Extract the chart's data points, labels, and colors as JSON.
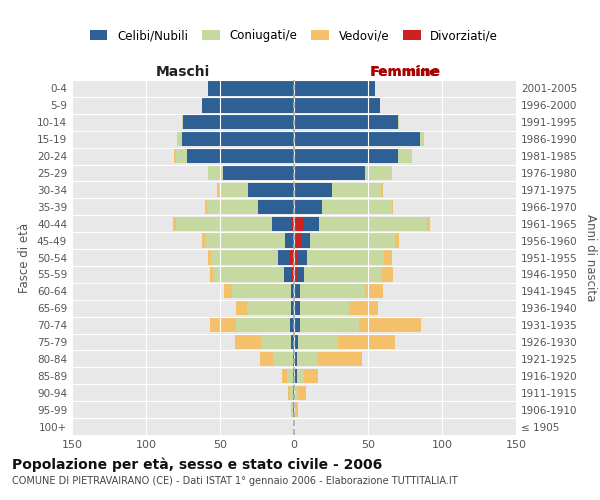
{
  "age_groups": [
    "100+",
    "95-99",
    "90-94",
    "85-89",
    "80-84",
    "75-79",
    "70-74",
    "65-69",
    "60-64",
    "55-59",
    "50-54",
    "45-49",
    "40-44",
    "35-39",
    "30-34",
    "25-29",
    "20-24",
    "15-19",
    "10-14",
    "5-9",
    "0-4"
  ],
  "birth_years": [
    "≤ 1905",
    "1906-1910",
    "1911-1915",
    "1916-1920",
    "1921-1925",
    "1926-1930",
    "1931-1935",
    "1936-1940",
    "1941-1945",
    "1946-1950",
    "1951-1955",
    "1956-1960",
    "1961-1965",
    "1966-1970",
    "1971-1975",
    "1976-1980",
    "1981-1985",
    "1986-1990",
    "1991-1995",
    "1996-2000",
    "2001-2005"
  ],
  "male_celibi": [
    0,
    1,
    1,
    1,
    1,
    2,
    3,
    2,
    2,
    5,
    8,
    5,
    13,
    23,
    30,
    47,
    72,
    76,
    75,
    62,
    58
  ],
  "male_coniugati": [
    0,
    1,
    2,
    4,
    13,
    20,
    36,
    30,
    40,
    48,
    45,
    54,
    65,
    35,
    20,
    10,
    8,
    3,
    1,
    0,
    0
  ],
  "male_vedovi": [
    0,
    0,
    1,
    3,
    9,
    18,
    18,
    7,
    5,
    2,
    2,
    2,
    2,
    1,
    1,
    0,
    1,
    0,
    0,
    0,
    0
  ],
  "male_divorziati": [
    0,
    0,
    0,
    0,
    0,
    0,
    0,
    0,
    0,
    2,
    3,
    1,
    2,
    1,
    1,
    1,
    0,
    0,
    0,
    0,
    0
  ],
  "female_nubili": [
    0,
    1,
    1,
    2,
    2,
    3,
    3,
    3,
    3,
    5,
    7,
    6,
    10,
    18,
    25,
    48,
    70,
    85,
    70,
    58,
    55
  ],
  "female_coniugate": [
    0,
    0,
    2,
    5,
    14,
    27,
    40,
    33,
    44,
    52,
    52,
    57,
    73,
    47,
    33,
    18,
    10,
    3,
    1,
    0,
    0
  ],
  "female_vedove": [
    0,
    2,
    5,
    9,
    30,
    38,
    42,
    20,
    12,
    8,
    5,
    3,
    2,
    1,
    1,
    0,
    0,
    0,
    0,
    0,
    0
  ],
  "female_divorziate": [
    0,
    0,
    0,
    0,
    0,
    0,
    1,
    1,
    1,
    2,
    2,
    5,
    7,
    1,
    1,
    0,
    0,
    0,
    0,
    0,
    0
  ],
  "color_celibi": "#2E6096",
  "color_coniugati": "#C5D9A0",
  "color_vedovi": "#F5C06A",
  "color_divorziati": "#CC2222",
  "bg_color": "#ffffff",
  "plot_bg_color": "#e8e8e8",
  "grid_color": "#ffffff",
  "xlim": 150,
  "title": "Popolazione per età, sesso e stato civile - 2006",
  "subtitle": "COMUNE DI PIETRAVAIRANO (CE) - Dati ISTAT 1° gennaio 2006 - Elaborazione TUTTITALIA.IT",
  "label_maschi": "Maschi",
  "label_femmine": "Femmine",
  "ylabel_left": "Fasce di età",
  "ylabel_right": "Anni di nascita",
  "legend_labels": [
    "Celibi/Nubili",
    "Coniugati/e",
    "Vedovi/e",
    "Divorziati/e"
  ]
}
